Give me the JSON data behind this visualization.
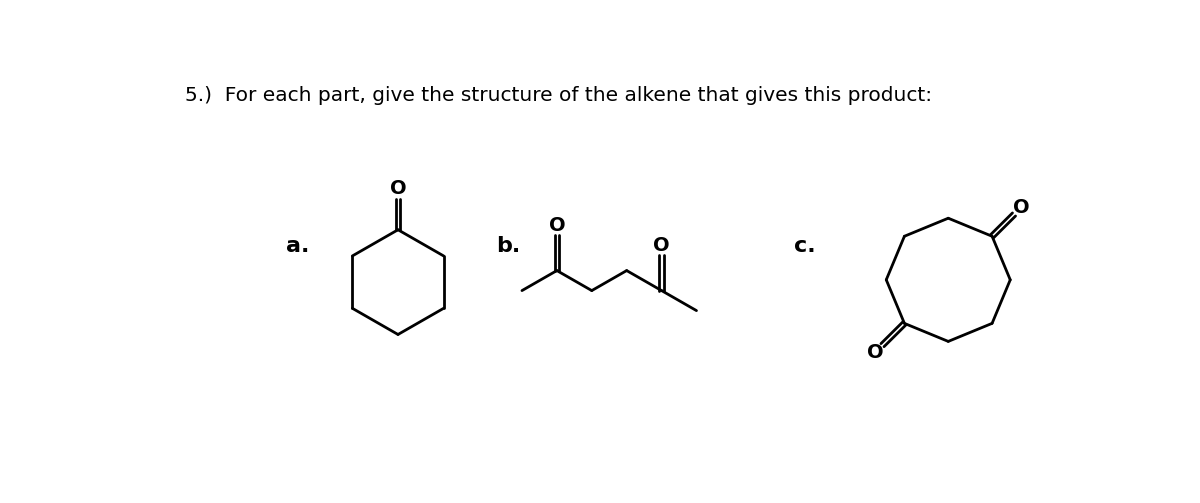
{
  "title": "5.)  For each part, give the structure of the alkene that gives this product:",
  "title_fontsize": 14.5,
  "title_fontfamily": "DejaVu Sans",
  "background_color": "#ffffff",
  "label_a": "a.",
  "label_b": "b.",
  "label_c": "c.",
  "label_fontsize": 16,
  "lw": 2.0,
  "O_fontsize": 14,
  "fig_w": 12.0,
  "fig_h": 5.03
}
